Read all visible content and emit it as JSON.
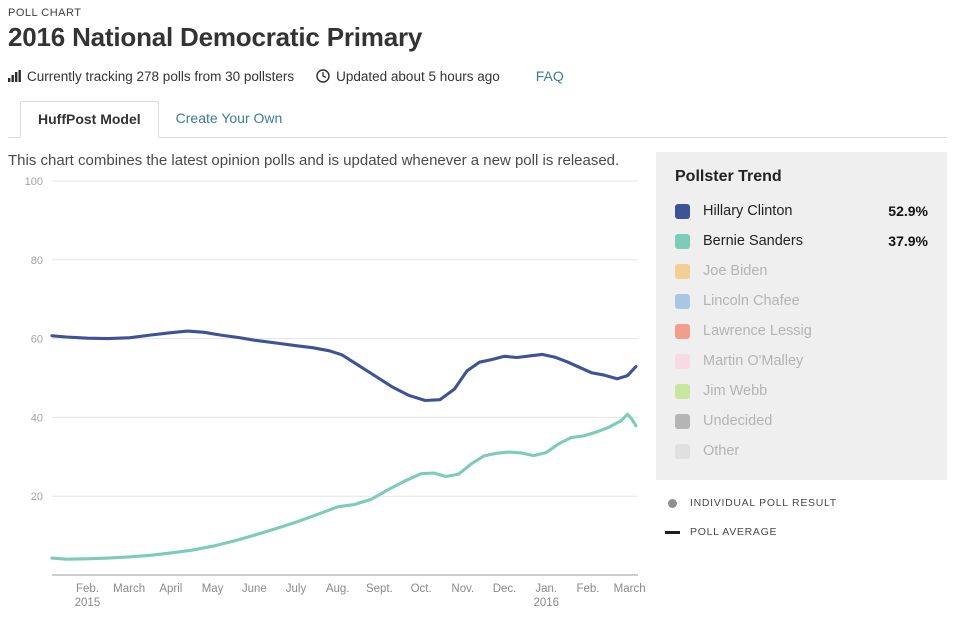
{
  "header": {
    "kicker": "POLL CHART",
    "title": "2016 National Democratic Primary",
    "tracking": "Currently tracking 278 polls from 30 pollsters",
    "updated": "Updated about 5 hours ago",
    "faq": "FAQ"
  },
  "tabs": [
    {
      "label": "HuffPost Model",
      "active": true
    },
    {
      "label": "Create Your Own",
      "active": false
    }
  ],
  "description": "This chart combines the latest opinion polls and is updated whenever a new poll is released.",
  "trend_panel": {
    "title": "Pollster Trend",
    "items": [
      {
        "name": "Hillary Clinton",
        "value": "52.9%",
        "color": "#3e5395",
        "active": true
      },
      {
        "name": "Bernie Sanders",
        "value": "37.9%",
        "color": "#7dcbb9",
        "active": true
      },
      {
        "name": "Joe Biden",
        "value": "",
        "color": "#f3cf93",
        "active": false
      },
      {
        "name": "Lincoln Chafee",
        "value": "",
        "color": "#a9c7e3",
        "active": false
      },
      {
        "name": "Lawrence Lessig",
        "value": "",
        "color": "#f29e8e",
        "active": false
      },
      {
        "name": "Martin O'Malley",
        "value": "",
        "color": "#f9d9e4",
        "active": false
      },
      {
        "name": "Jim Webb",
        "value": "",
        "color": "#c9e79c",
        "active": false
      },
      {
        "name": "Undecided",
        "value": "",
        "color": "#b5b5b5",
        "active": false
      },
      {
        "name": "Other",
        "value": "",
        "color": "#e0e0e0",
        "active": false
      }
    ]
  },
  "key": [
    {
      "type": "dot",
      "label": "INDIVIDUAL POLL RESULT"
    },
    {
      "type": "line",
      "label": "POLL AVERAGE"
    }
  ],
  "chart_data": {
    "type": "line",
    "title": "2016 National Democratic Primary — Pollster Trend",
    "xlabel": "",
    "ylabel": "",
    "ylim": [
      0,
      100
    ],
    "yticks": [
      20,
      40,
      60,
      80,
      100
    ],
    "grid": true,
    "legend_position": "right-panel",
    "x_unit": "months since Feb 2015 (fractional)",
    "x_categories": [
      {
        "label": "Feb.",
        "sublabel": "2015"
      },
      {
        "label": "March"
      },
      {
        "label": "April"
      },
      {
        "label": "May"
      },
      {
        "label": "June"
      },
      {
        "label": "July"
      },
      {
        "label": "Aug."
      },
      {
        "label": "Sept."
      },
      {
        "label": "Oct."
      },
      {
        "label": "Nov."
      },
      {
        "label": "Dec."
      },
      {
        "label": "Jan.",
        "sublabel": "2016"
      },
      {
        "label": "Feb."
      },
      {
        "label": "March"
      }
    ],
    "series": [
      {
        "name": "Hillary Clinton",
        "color": "#3e5395",
        "current": 52.9,
        "points": [
          [
            -0.85,
            60.7
          ],
          [
            -0.5,
            60.4
          ],
          [
            0,
            60.1
          ],
          [
            0.5,
            60.0
          ],
          [
            1,
            60.2
          ],
          [
            1.5,
            60.9
          ],
          [
            2,
            61.5
          ],
          [
            2.4,
            61.9
          ],
          [
            2.8,
            61.6
          ],
          [
            3.2,
            60.9
          ],
          [
            3.6,
            60.3
          ],
          [
            4,
            59.6
          ],
          [
            4.5,
            58.9
          ],
          [
            5,
            58.2
          ],
          [
            5.4,
            57.7
          ],
          [
            5.8,
            56.9
          ],
          [
            6.1,
            55.9
          ],
          [
            6.5,
            53.2
          ],
          [
            6.9,
            50.5
          ],
          [
            7.3,
            47.8
          ],
          [
            7.7,
            45.6
          ],
          [
            8.1,
            44.3
          ],
          [
            8.45,
            44.5
          ],
          [
            8.8,
            47.2
          ],
          [
            9.1,
            51.8
          ],
          [
            9.4,
            54.0
          ],
          [
            9.7,
            54.7
          ],
          [
            10,
            55.5
          ],
          [
            10.3,
            55.2
          ],
          [
            10.6,
            55.6
          ],
          [
            10.9,
            56.0
          ],
          [
            11.2,
            55.3
          ],
          [
            11.5,
            54.1
          ],
          [
            11.8,
            52.7
          ],
          [
            12.1,
            51.3
          ],
          [
            12.4,
            50.7
          ],
          [
            12.7,
            49.8
          ],
          [
            12.95,
            50.6
          ],
          [
            13.15,
            52.9
          ]
        ]
      },
      {
        "name": "Bernie Sanders",
        "color": "#7dcbb9",
        "current": 37.9,
        "points": [
          [
            -0.85,
            4.3
          ],
          [
            -0.5,
            4.0
          ],
          [
            0,
            4.1
          ],
          [
            0.5,
            4.3
          ],
          [
            1,
            4.6
          ],
          [
            1.5,
            5.0
          ],
          [
            2,
            5.6
          ],
          [
            2.5,
            6.3
          ],
          [
            3,
            7.3
          ],
          [
            3.5,
            8.6
          ],
          [
            4,
            10.1
          ],
          [
            4.5,
            11.7
          ],
          [
            5,
            13.4
          ],
          [
            5.5,
            15.3
          ],
          [
            6,
            17.3
          ],
          [
            6.4,
            17.9
          ],
          [
            6.8,
            19.2
          ],
          [
            7.2,
            21.6
          ],
          [
            7.6,
            23.8
          ],
          [
            8,
            25.7
          ],
          [
            8.3,
            25.9
          ],
          [
            8.6,
            25.0
          ],
          [
            8.9,
            25.6
          ],
          [
            9.2,
            28.2
          ],
          [
            9.5,
            30.2
          ],
          [
            9.8,
            30.9
          ],
          [
            10.1,
            31.2
          ],
          [
            10.4,
            31.0
          ],
          [
            10.7,
            30.3
          ],
          [
            11,
            31.1
          ],
          [
            11.3,
            33.3
          ],
          [
            11.6,
            34.9
          ],
          [
            11.9,
            35.3
          ],
          [
            12.2,
            36.3
          ],
          [
            12.5,
            37.5
          ],
          [
            12.8,
            39.2
          ],
          [
            12.95,
            40.8
          ],
          [
            13.05,
            39.6
          ],
          [
            13.15,
            37.9
          ]
        ]
      }
    ]
  }
}
